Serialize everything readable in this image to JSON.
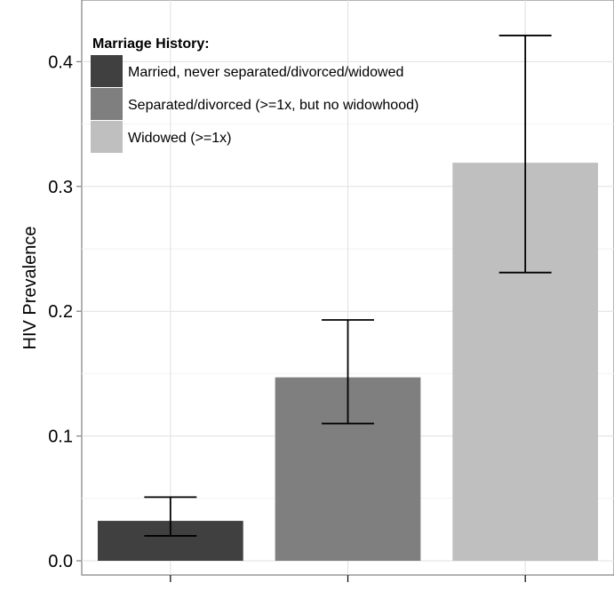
{
  "chart_data": {
    "type": "bar",
    "title": "",
    "xlabel": "",
    "ylabel": "HIV Prevalence",
    "ylim": [
      0,
      0.435
    ],
    "yticks": [
      0.0,
      0.1,
      0.2,
      0.3,
      0.4
    ],
    "ytick_labels": [
      "0.0",
      "0.1",
      "0.2",
      "0.3",
      "0.4"
    ],
    "categories": [
      "Married, never separated/divorced/widowed",
      "Separated/divorced (>=1x, but no widowhood)",
      "Widowed (>=1x)"
    ],
    "values": [
      0.032,
      0.147,
      0.319
    ],
    "error_low": [
      0.02,
      0.11,
      0.231
    ],
    "error_high": [
      0.051,
      0.193,
      0.421
    ],
    "colors": [
      "#404040",
      "#7f7f7f",
      "#bfbfbf"
    ],
    "grid": true,
    "legend": {
      "title": "Marriage History:",
      "position": "top-left",
      "entries": [
        "Married, never separated/divorced/widowed",
        "Separated/divorced (>=1x, but no widowhood)",
        "Widowed (>=1x)"
      ]
    }
  }
}
